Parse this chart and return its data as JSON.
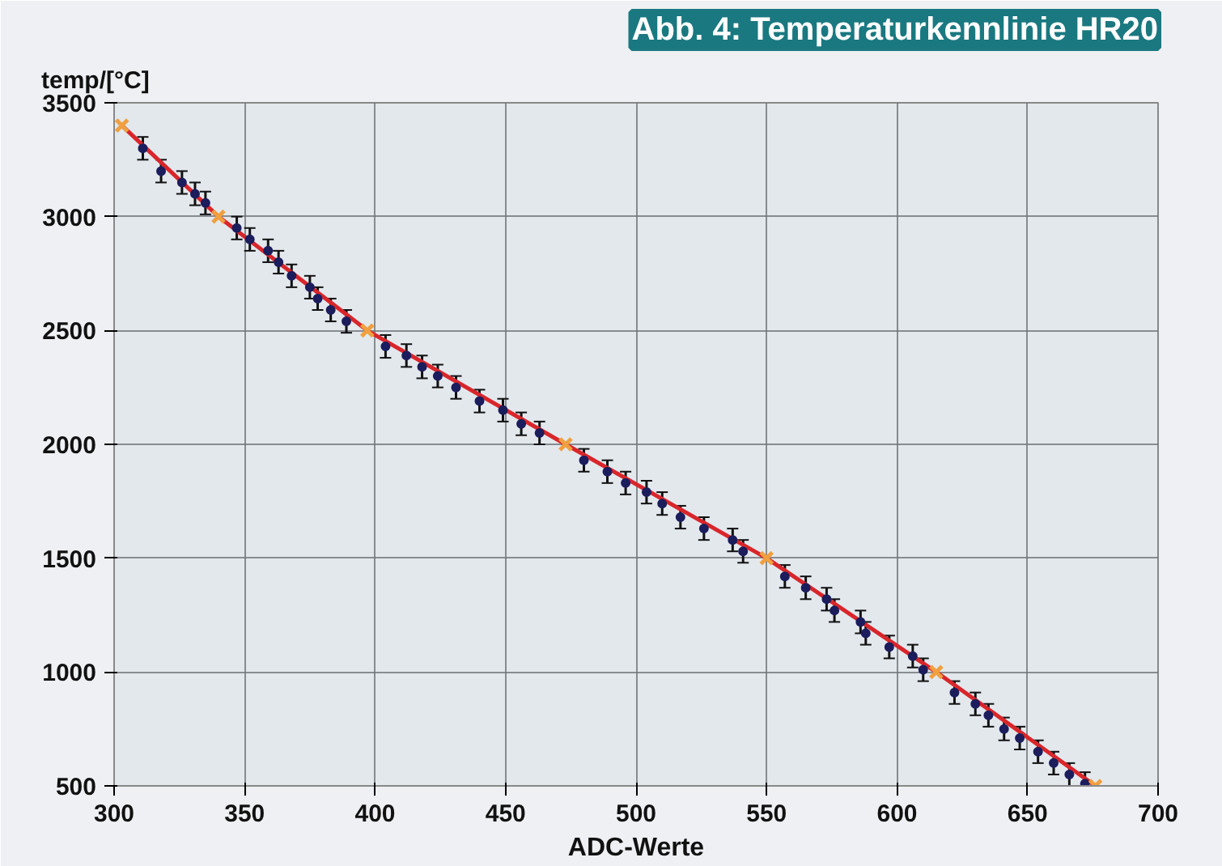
{
  "chart_data": {
    "type": "scatter",
    "title": "Abb. 4: Temperaturkennlinie HR20",
    "xlabel": "ADC-Werte",
    "ylabel": "temp/[°C]",
    "xlim": [
      300,
      700
    ],
    "xticks": [
      300,
      350,
      400,
      450,
      500,
      550,
      600,
      650,
      700
    ],
    "ylim": [
      500,
      3500
    ],
    "yticks": [
      500,
      1000,
      1500,
      2000,
      2500,
      3000,
      3500
    ],
    "grid": true,
    "series": [
      {
        "type": "line",
        "color": "#d8262b",
        "marker": "none",
        "line_style": "solid",
        "x": [
          303,
          340,
          397,
          473,
          550,
          615,
          676
        ],
        "values": [
          3400,
          3000,
          2500,
          2000,
          1500,
          1000,
          500
        ]
      },
      {
        "color": "#1c1d5c",
        "marker": "circle",
        "x": [
          311,
          318,
          326,
          331,
          335,
          347,
          352,
          359,
          363,
          368,
          375,
          378,
          383,
          389,
          404,
          412,
          418,
          424,
          431,
          440,
          449,
          456,
          463,
          480,
          489,
          496,
          504,
          510,
          517,
          526,
          537,
          541,
          557,
          565,
          573,
          576,
          586,
          588,
          597,
          606,
          610,
          622,
          630,
          635,
          641,
          647,
          654,
          660,
          666,
          672
        ],
        "values": [
          3300,
          3200,
          3150,
          3100,
          3060,
          2950,
          2900,
          2850,
          2800,
          2740,
          2690,
          2640,
          2590,
          2540,
          2430,
          2390,
          2340,
          2300,
          2250,
          2190,
          2150,
          2090,
          2050,
          1930,
          1880,
          1830,
          1790,
          1740,
          1680,
          1630,
          1580,
          1530,
          1420,
          1370,
          1320,
          1270,
          1220,
          1170,
          1110,
          1070,
          1010,
          910,
          860,
          810,
          750,
          710,
          650,
          600,
          550,
          510
        ],
        "errors": [
          50,
          50,
          50,
          50,
          50,
          50,
          50,
          50,
          50,
          50,
          50,
          50,
          50,
          50,
          50,
          50,
          50,
          50,
          50,
          50,
          50,
          50,
          50,
          50,
          50,
          50,
          50,
          50,
          50,
          50,
          50,
          50,
          50,
          50,
          50,
          50,
          50,
          50,
          50,
          50,
          50,
          50,
          50,
          50,
          50,
          50,
          50,
          50,
          50,
          50
        ]
      },
      {
        "color": "#f0a040",
        "marker": "cross",
        "x": [
          303,
          340,
          397,
          473,
          550,
          615,
          676
        ],
        "values": [
          3400,
          3000,
          2500,
          2000,
          1500,
          1000,
          500
        ]
      }
    ]
  }
}
